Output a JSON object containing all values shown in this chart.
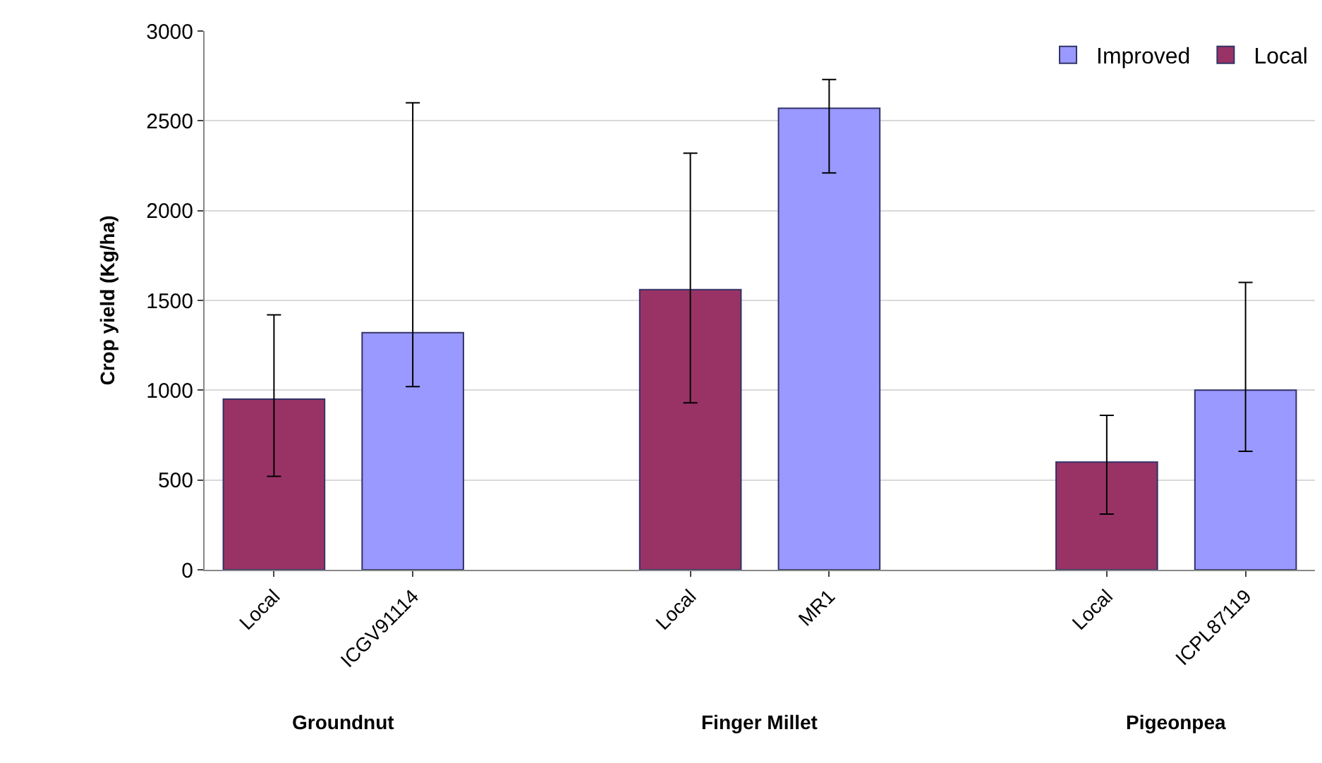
{
  "chart_data": {
    "type": "bar",
    "ylabel": "Crop yield (Kg/ha)",
    "categories": [
      "Local",
      "ICGV91114",
      null,
      "Local",
      "MR1",
      null,
      "Local",
      "ICPL87119"
    ],
    "series": [
      {
        "name": "Improved",
        "color": "#9999ff",
        "values": [
          null,
          1320,
          null,
          null,
          2570,
          null,
          null,
          1000
        ],
        "errors": [
          null,
          [
            1020,
            2600
          ],
          null,
          null,
          [
            2210,
            2730
          ],
          null,
          null,
          [
            660,
            1600
          ]
        ]
      },
      {
        "name": "Local",
        "color": "#993366",
        "values": [
          950,
          null,
          null,
          1560,
          null,
          null,
          600,
          null
        ],
        "errors": [
          [
            520,
            1420
          ],
          null,
          null,
          [
            930,
            2320
          ],
          null,
          null,
          [
            310,
            860
          ],
          null
        ]
      }
    ],
    "annotations": [
      "Groundnut",
      "Finger Millet",
      "Pigeonpea"
    ],
    "ylim": [
      0,
      3000
    ],
    "yticks": [
      0,
      500,
      1000,
      1500,
      2000,
      2500,
      3000
    ],
    "grid": "y",
    "legend": "top right"
  }
}
